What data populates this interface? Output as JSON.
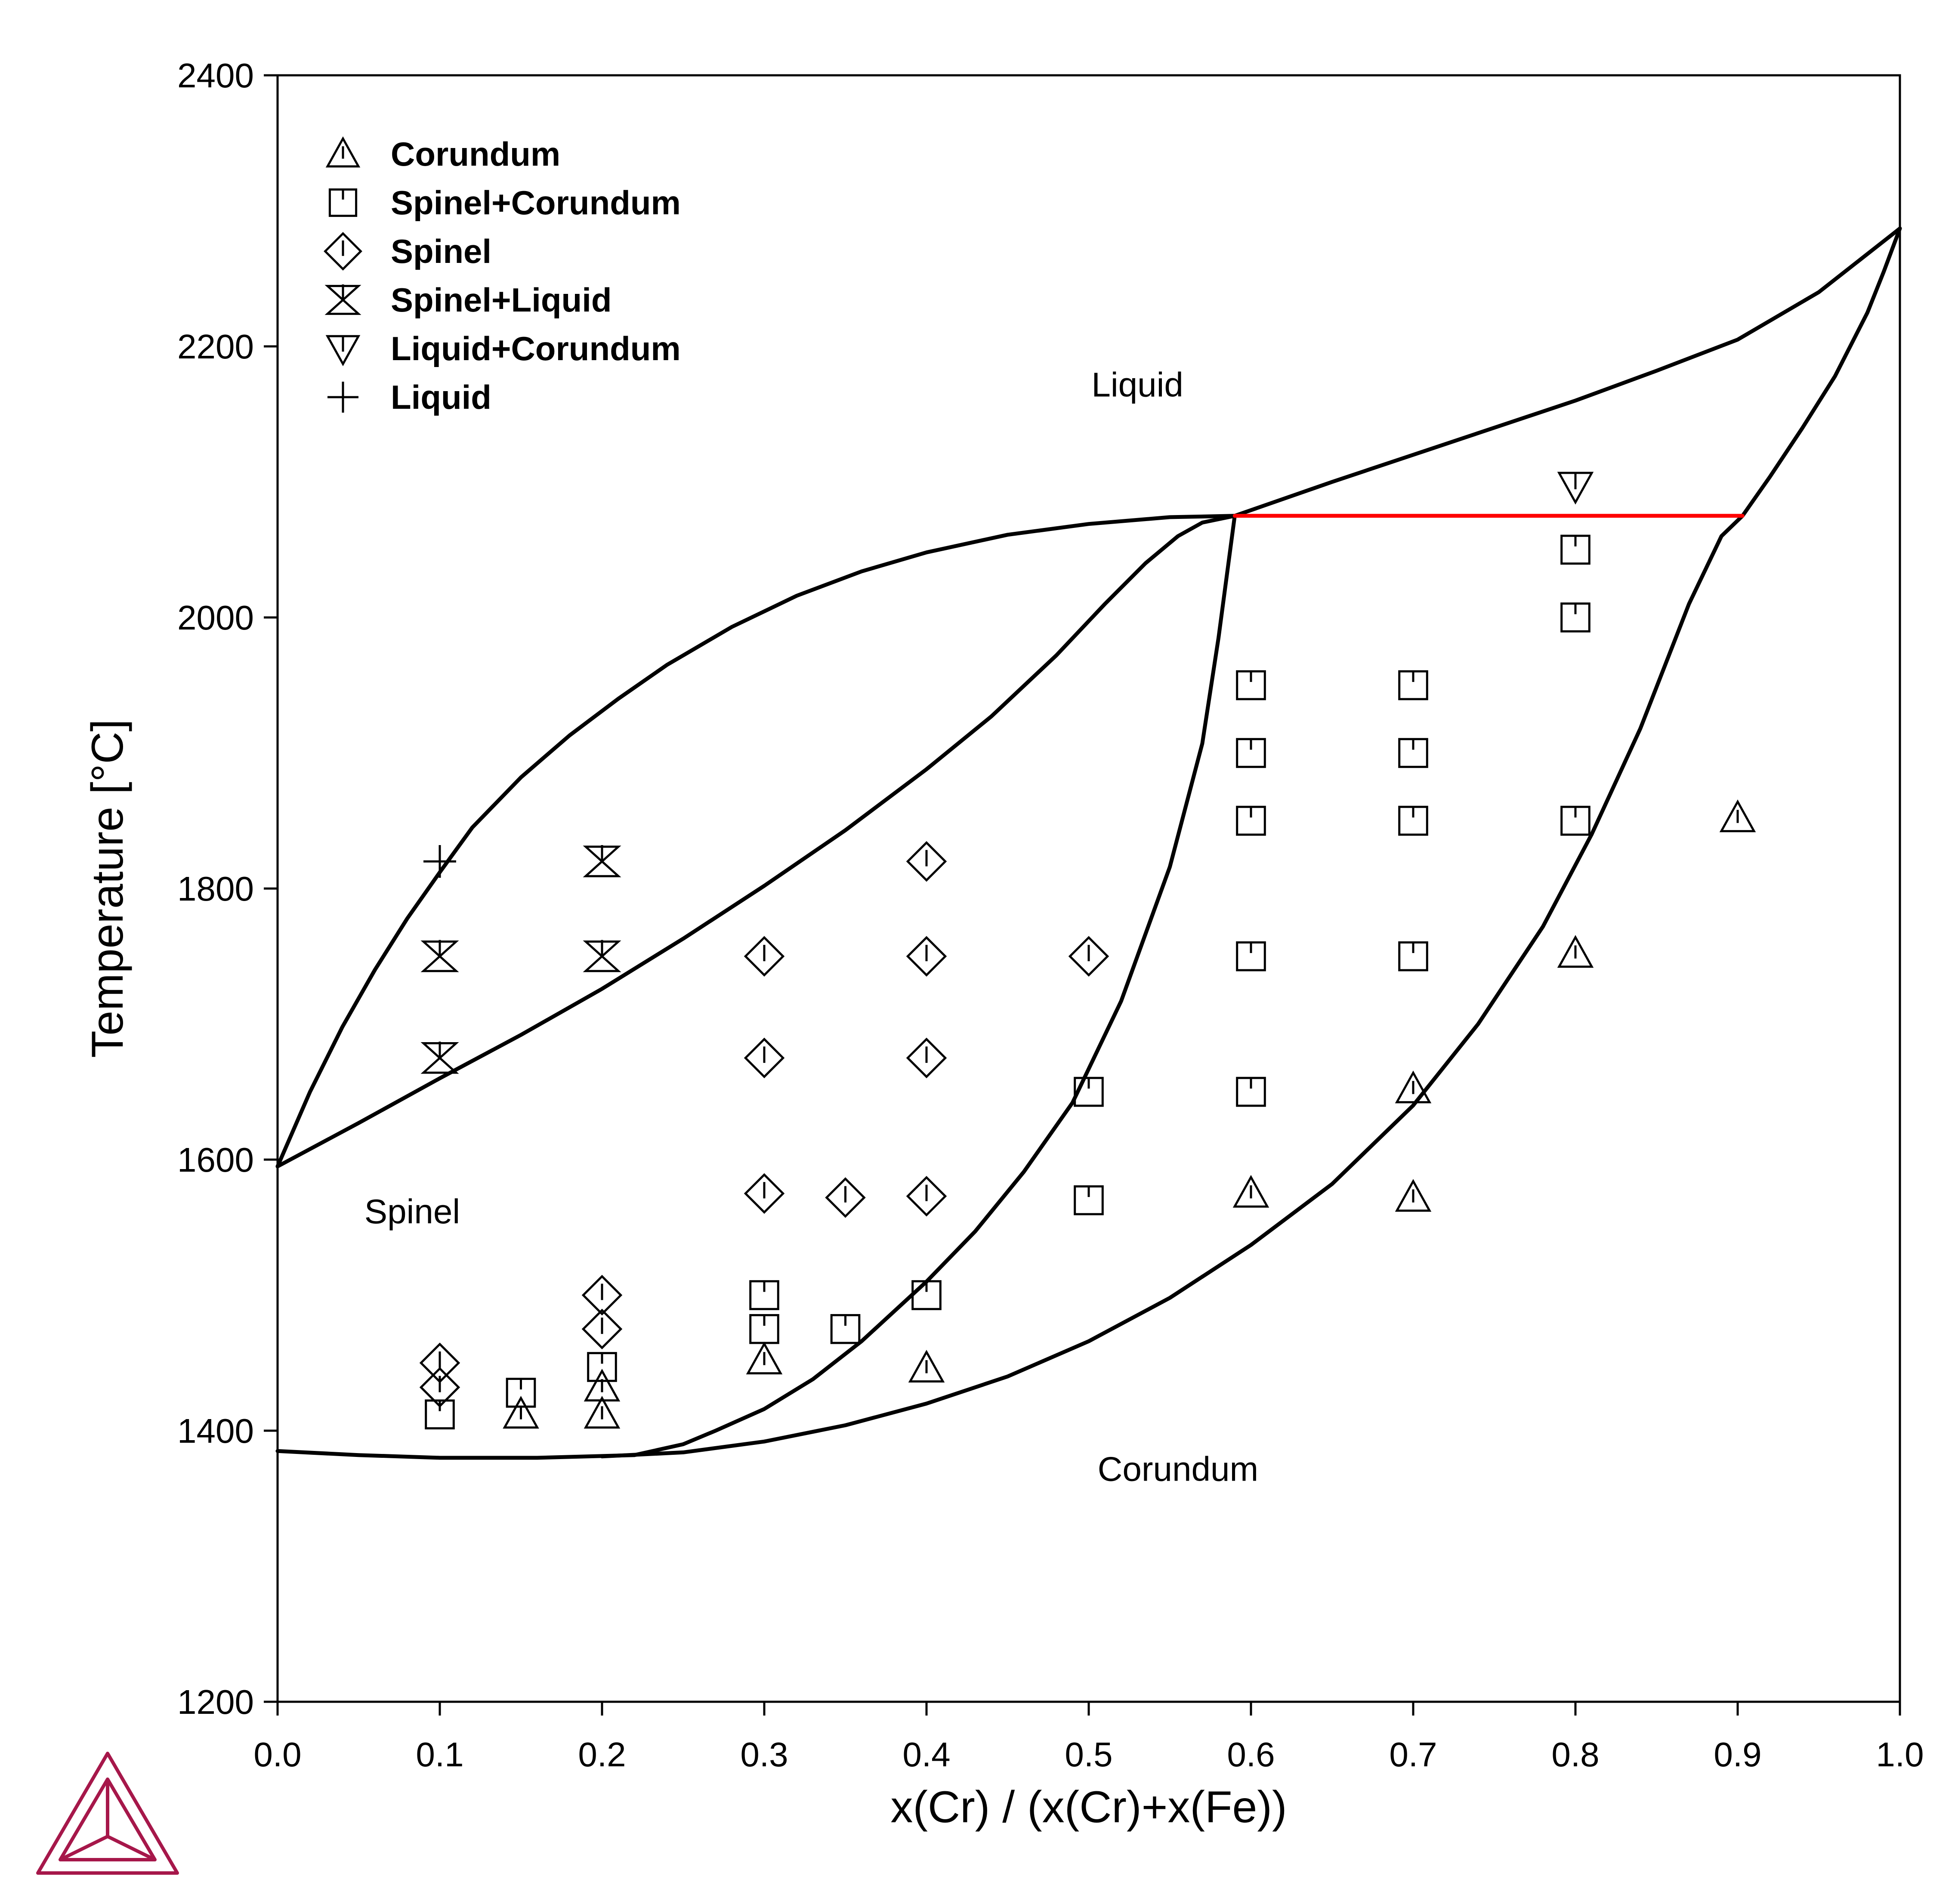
{
  "chart_data": {
    "type": "scatter",
    "title": "",
    "xlabel": "x(Cr) / (x(Cr)+x(Fe))",
    "ylabel": "Temperature [°C]",
    "xlim": [
      0.0,
      1.0
    ],
    "ylim": [
      1200,
      2400
    ],
    "xticks": [
      "0.0",
      "0.1",
      "0.2",
      "0.3",
      "0.4",
      "0.5",
      "0.6",
      "0.7",
      "0.8",
      "0.9",
      "1.0"
    ],
    "yticks": [
      "1200",
      "1400",
      "1600",
      "1800",
      "2000",
      "2200",
      "2400"
    ],
    "grid": false,
    "legend_position": "top-left",
    "region_labels": [
      {
        "text": "Liquid",
        "x": 0.53,
        "y": 2163
      },
      {
        "text": "Spinel",
        "x": 0.083,
        "y": 1553
      },
      {
        "text": "Corundum",
        "x": 0.555,
        "y": 1363
      }
    ],
    "lines": [
      {
        "name": "liquidus-spinel",
        "color": "#000000",
        "points": [
          [
            0.0,
            1595
          ],
          [
            0.02,
            1650
          ],
          [
            0.04,
            1698
          ],
          [
            0.06,
            1740
          ],
          [
            0.08,
            1778
          ],
          [
            0.1,
            1812
          ],
          [
            0.12,
            1845
          ],
          [
            0.15,
            1882
          ],
          [
            0.18,
            1913
          ],
          [
            0.21,
            1940
          ],
          [
            0.24,
            1965
          ],
          [
            0.28,
            1993
          ],
          [
            0.32,
            2016
          ],
          [
            0.36,
            2034
          ],
          [
            0.4,
            2048
          ],
          [
            0.45,
            2061
          ],
          [
            0.5,
            2069
          ],
          [
            0.55,
            2074
          ],
          [
            0.59,
            2075
          ]
        ]
      },
      {
        "name": "solidus-spinel",
        "color": "#000000",
        "points": [
          [
            0.0,
            1595
          ],
          [
            0.05,
            1627
          ],
          [
            0.1,
            1660
          ],
          [
            0.15,
            1692
          ],
          [
            0.2,
            1726
          ],
          [
            0.25,
            1763
          ],
          [
            0.3,
            1802
          ],
          [
            0.35,
            1843
          ],
          [
            0.4,
            1888
          ],
          [
            0.44,
            1927
          ],
          [
            0.48,
            1972
          ],
          [
            0.51,
            2010
          ],
          [
            0.535,
            2040
          ],
          [
            0.555,
            2060
          ],
          [
            0.57,
            2070
          ],
          [
            0.59,
            2075
          ]
        ]
      },
      {
        "name": "liquidus-corundum",
        "color": "#000000",
        "points": [
          [
            0.59,
            2075
          ],
          [
            0.65,
            2100
          ],
          [
            0.7,
            2120
          ],
          [
            0.75,
            2140
          ],
          [
            0.8,
            2160
          ],
          [
            0.85,
            2182
          ],
          [
            0.9,
            2205
          ],
          [
            0.95,
            2240
          ],
          [
            1.0,
            2287
          ]
        ]
      },
      {
        "name": "solidus-corundum",
        "color": "#000000",
        "points": [
          [
            0.903,
            2075
          ],
          [
            0.92,
            2104
          ],
          [
            0.94,
            2140
          ],
          [
            0.96,
            2178
          ],
          [
            0.98,
            2225
          ],
          [
            0.99,
            2255
          ],
          [
            1.0,
            2287
          ]
        ]
      },
      {
        "name": "spinel-boundary",
        "color": "#000000",
        "points": [
          [
            0.0,
            1385
          ],
          [
            0.05,
            1382
          ],
          [
            0.1,
            1380
          ],
          [
            0.16,
            1380
          ],
          [
            0.22,
            1382
          ],
          [
            0.25,
            1390
          ],
          [
            0.27,
            1400
          ],
          [
            0.3,
            1416
          ],
          [
            0.33,
            1438
          ],
          [
            0.36,
            1466
          ],
          [
            0.4,
            1510
          ],
          [
            0.43,
            1547
          ],
          [
            0.46,
            1591
          ],
          [
            0.49,
            1642
          ],
          [
            0.52,
            1717
          ],
          [
            0.55,
            1816
          ],
          [
            0.57,
            1907
          ],
          [
            0.58,
            1985
          ],
          [
            0.59,
            2075
          ]
        ]
      },
      {
        "name": "corundum-boundary",
        "color": "#000000",
        "points": [
          [
            0.2,
            1381
          ],
          [
            0.25,
            1384
          ],
          [
            0.3,
            1392
          ],
          [
            0.35,
            1404
          ],
          [
            0.4,
            1420
          ],
          [
            0.45,
            1440
          ],
          [
            0.5,
            1466
          ],
          [
            0.55,
            1498
          ],
          [
            0.6,
            1537
          ],
          [
            0.65,
            1582
          ],
          [
            0.7,
            1640
          ],
          [
            0.74,
            1700
          ],
          [
            0.78,
            1772
          ],
          [
            0.81,
            1840
          ],
          [
            0.84,
            1918
          ],
          [
            0.87,
            2010
          ],
          [
            0.89,
            2060
          ],
          [
            0.903,
            2075
          ]
        ]
      },
      {
        "name": "eutectic-tie-line",
        "color": "#ff0000",
        "points": [
          [
            0.59,
            2075
          ],
          [
            0.903,
            2075
          ]
        ]
      }
    ],
    "series": [
      {
        "name": "Corundum",
        "marker": "triangle-up",
        "points": [
          [
            0.15,
            1412
          ],
          [
            0.2,
            1412
          ],
          [
            0.2,
            1432
          ],
          [
            0.3,
            1452
          ],
          [
            0.4,
            1446
          ],
          [
            0.6,
            1575
          ],
          [
            0.7,
            1572
          ],
          [
            0.7,
            1652
          ],
          [
            0.8,
            1752
          ],
          [
            0.9,
            1852
          ]
        ]
      },
      {
        "name": "Spinel+Corundum",
        "marker": "square",
        "points": [
          [
            0.1,
            1412
          ],
          [
            0.15,
            1428
          ],
          [
            0.2,
            1447
          ],
          [
            0.3,
            1500
          ],
          [
            0.3,
            1475
          ],
          [
            0.35,
            1475
          ],
          [
            0.4,
            1500
          ],
          [
            0.5,
            1570
          ],
          [
            0.5,
            1650
          ],
          [
            0.6,
            1650
          ],
          [
            0.6,
            1750
          ],
          [
            0.6,
            1850
          ],
          [
            0.6,
            1900
          ],
          [
            0.6,
            1950
          ],
          [
            0.7,
            1750
          ],
          [
            0.7,
            1850
          ],
          [
            0.7,
            1900
          ],
          [
            0.7,
            1950
          ],
          [
            0.8,
            1850
          ],
          [
            0.8,
            2000
          ],
          [
            0.8,
            2050
          ]
        ]
      },
      {
        "name": "Spinel",
        "marker": "diamond",
        "points": [
          [
            0.1,
            1450
          ],
          [
            0.1,
            1432
          ],
          [
            0.2,
            1500
          ],
          [
            0.2,
            1475
          ],
          [
            0.3,
            1575
          ],
          [
            0.3,
            1675
          ],
          [
            0.3,
            1750
          ],
          [
            0.35,
            1572
          ],
          [
            0.4,
            1573
          ],
          [
            0.4,
            1675
          ],
          [
            0.4,
            1750
          ],
          [
            0.4,
            1820
          ],
          [
            0.5,
            1750
          ]
        ]
      },
      {
        "name": "Spinel+Liquid",
        "marker": "hourglass",
        "points": [
          [
            0.1,
            1675
          ],
          [
            0.1,
            1750
          ],
          [
            0.2,
            1750
          ],
          [
            0.2,
            1820
          ]
        ]
      },
      {
        "name": "Liquid+Corundum",
        "marker": "triangle-down",
        "points": [
          [
            0.8,
            2097
          ]
        ]
      },
      {
        "name": "Liquid",
        "marker": "plus",
        "points": [
          [
            0.1,
            1820
          ]
        ]
      }
    ]
  },
  "logo": {
    "name": "thermo-calc-logo",
    "color": "#a6174a"
  }
}
